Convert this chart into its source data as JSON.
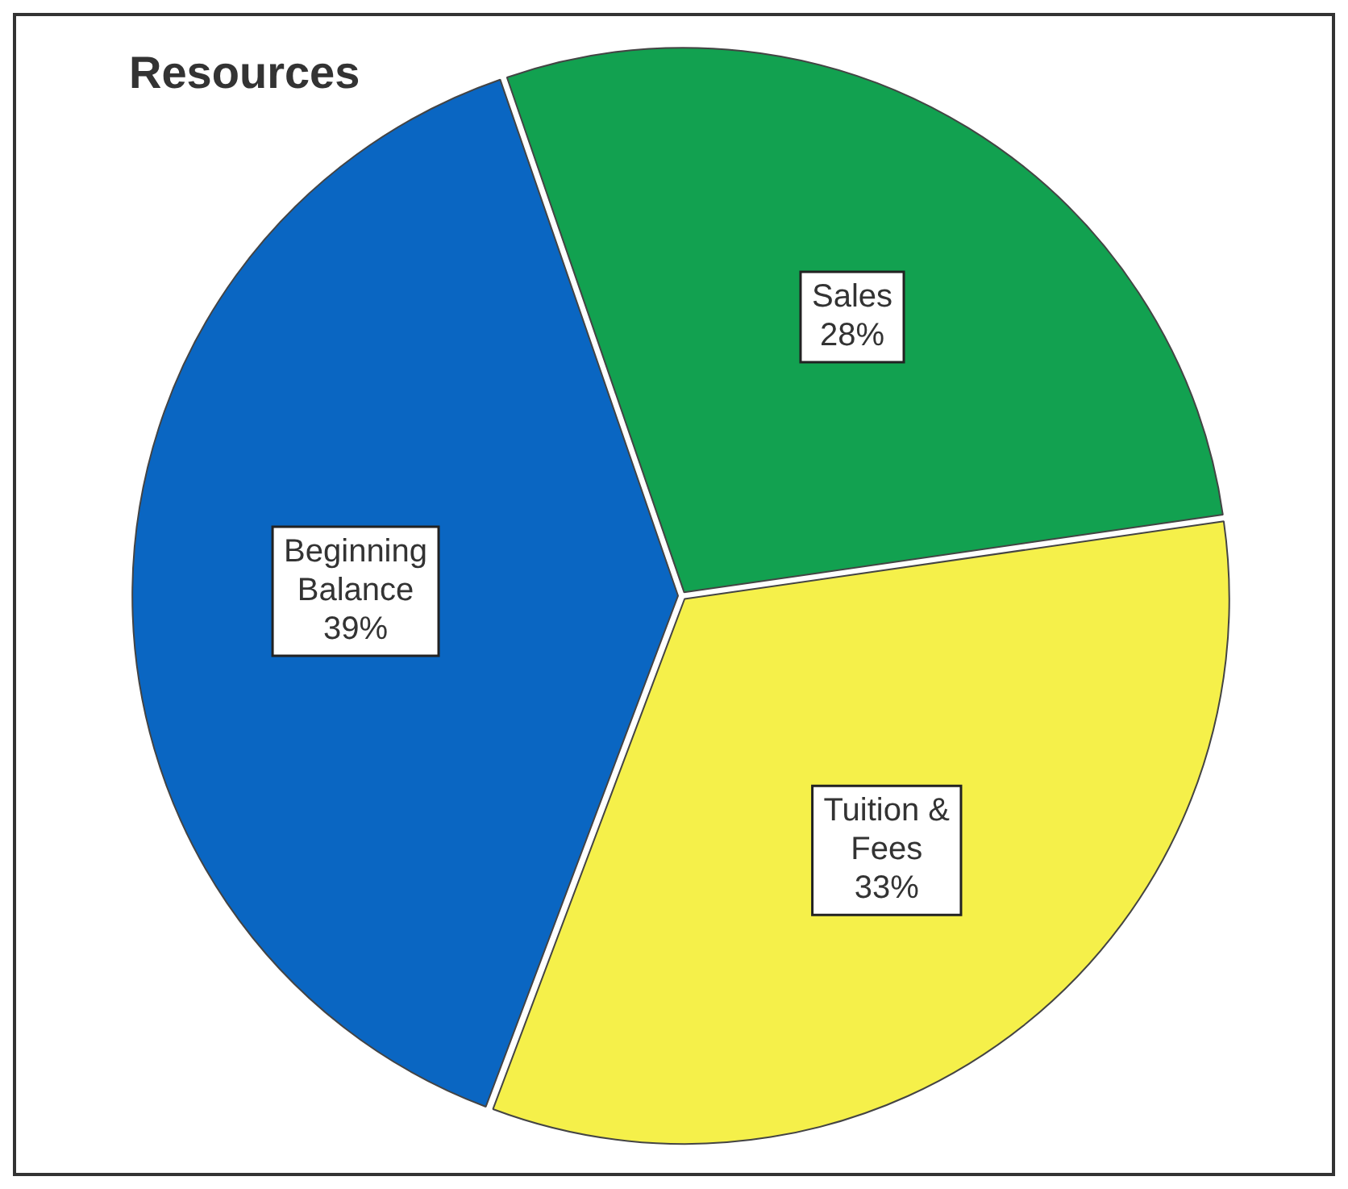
{
  "chart_data": {
    "type": "pie",
    "title": "Resources",
    "categories": [
      "Sales",
      "Tuition & Fees",
      "Beginning Balance"
    ],
    "values": [
      28,
      33,
      39
    ],
    "colors": [
      "#12a150",
      "#f5f04a",
      "#0a66c2"
    ],
    "value_labels": [
      "28%",
      "33%",
      "39%"
    ],
    "legend": false
  }
}
